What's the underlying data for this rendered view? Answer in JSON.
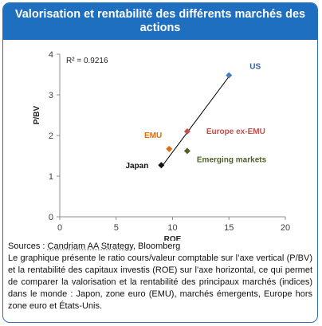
{
  "header": {
    "title": "Valorisation et rentabilité des différents marchés des actions"
  },
  "chart_data": {
    "type": "scatter",
    "xlabel": "ROE",
    "ylabel": "P/BV",
    "xlim": [
      0,
      20
    ],
    "ylim": [
      0,
      4
    ],
    "xticks": [
      0,
      5,
      10,
      15,
      20
    ],
    "yticks": [
      0,
      1,
      2,
      3,
      4
    ],
    "grid": false,
    "legend": "none",
    "points": [
      {
        "label": "US",
        "x": 15.0,
        "y": 3.48,
        "color": "#4a7ebb",
        "label_color": "#2f62a8",
        "marker": "diamond"
      },
      {
        "label": "Europe ex-EMU",
        "x": 11.3,
        "y": 2.1,
        "color": "#c0504d",
        "label_color": "#c0504d",
        "marker": "diamond"
      },
      {
        "label": "EMU",
        "x": 9.7,
        "y": 1.67,
        "color": "#e46c0a",
        "label_color": "#e46c0a",
        "marker": "diamond"
      },
      {
        "label": "Emerging markets",
        "x": 11.3,
        "y": 1.62,
        "color": "#4f6228",
        "label_color": "#4f6228",
        "marker": "diamond"
      },
      {
        "label": "Japan",
        "x": 9.0,
        "y": 1.27,
        "color": "#111111",
        "label_color": "#111111",
        "marker": "diamond"
      }
    ],
    "trendline": {
      "x": [
        9.0,
        15.0
      ],
      "y": [
        1.22,
        3.45
      ],
      "color": "#000000"
    },
    "annotation": "R² = 0.9216"
  },
  "notes": {
    "sources_prefix": "Sources : ",
    "source_name": "Candriam AA Strategy",
    "sources_suffix": ", Bloomberg",
    "description": "Le graphique présente le ratio cours/valeur comptable sur l’axe vertical (P/BV) et la rentabilité des capitaux investis (ROE) sur l’axe horizontal, ce qui permet de comparer la valorisation et la rentabilité des principaux marchés (indices) dans le monde : Japon, zone euro (EMU), marchés émergents, Europe hors zone euro et États-Unis."
  }
}
